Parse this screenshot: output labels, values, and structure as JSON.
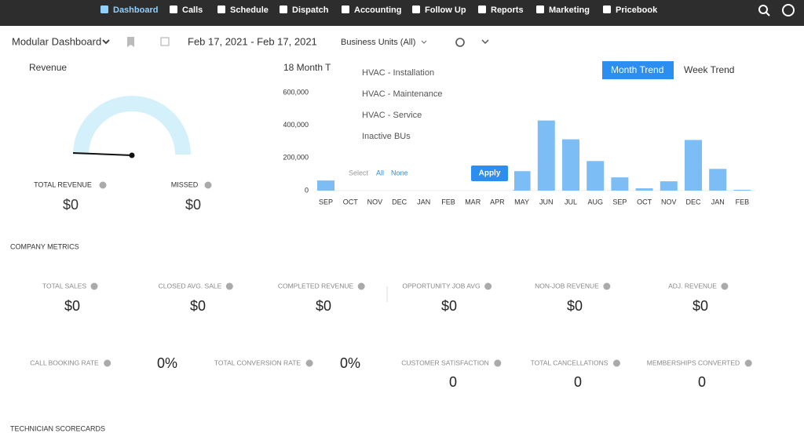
{
  "nav": {
    "items": [
      "Dashboard",
      "Calls",
      "Schedule",
      "Dispatch",
      "Accounting",
      "Follow Up",
      "Reports",
      "Marketing",
      "Pricebook"
    ]
  },
  "toolbar": {
    "dashboard": "Modular Dashboard",
    "date_range": "Feb 17, 2021 - Feb 17, 2021",
    "business_units": "Business Units (All)"
  },
  "revenue": {
    "title": "Revenue",
    "total_label": "TOTAL REVENUE",
    "total_value": "$0",
    "missed_label": "MISSED",
    "missed_value": "$0"
  },
  "trend_chart": {
    "type": "bar",
    "title": "18 Month T",
    "tabs": [
      "Month Trend",
      "Week Trend"
    ],
    "color": "#7dbdf5",
    "categories": [
      "SEP",
      "OCT",
      "NOV",
      "DEC",
      "JAN",
      "FEB",
      "MAR",
      "APR",
      "MAY",
      "JUN",
      "JUL",
      "AUG",
      "SEP",
      "OCT",
      "NOV",
      "DEC",
      "JAN",
      "FEB"
    ],
    "values": [
      62000,
      null,
      null,
      null,
      null,
      null,
      null,
      null,
      119000,
      429000,
      314000,
      181000,
      81000,
      14000,
      57000,
      310000,
      133000,
      5000
    ],
    "ylim": [
      0,
      600000
    ],
    "yticks": [
      0,
      {
        "value": 200000,
        "label": "200,000"
      },
      {
        "value": 400000,
        "label": "400,000"
      },
      {
        "value": 600000,
        "label": "600,000"
      }
    ]
  },
  "dropdown": {
    "options": [
      "HVAC - Installation",
      "HVAC - Maintenance",
      "HVAC - Service",
      "Inactive BUs"
    ],
    "select_label": "Select",
    "all": "All",
    "none": "None",
    "apply": "Apply"
  },
  "company_metrics": {
    "title": "COMPANY METRICS",
    "row1": [
      {
        "label": "TOTAL SALES",
        "value": "$0"
      },
      {
        "label": "CLOSED AVG. SALE",
        "value": "$0"
      },
      {
        "label": "COMPLETED REVENUE",
        "value": "$0"
      },
      {
        "label": "OPPORTUNITY JOB AVG",
        "value": "$0"
      },
      {
        "label": "NON-JOB REVENUE",
        "value": "$0"
      },
      {
        "label": "ADJ. REVENUE",
        "value": "$0"
      }
    ],
    "row2": [
      {
        "label": "CALL BOOKING RATE",
        "value": "0%"
      },
      {
        "label": "TOTAL CONVERSION RATE",
        "value": "0%"
      },
      {
        "label": "CUSTOMER SATISFACTION",
        "value": "0"
      },
      {
        "label": "TOTAL CANCELLATIONS",
        "value": "0"
      },
      {
        "label": "MEMBERSHIPS CONVERTED",
        "value": "0"
      }
    ]
  },
  "technician": {
    "title": "TECHNICIAN SCORECARDS"
  }
}
